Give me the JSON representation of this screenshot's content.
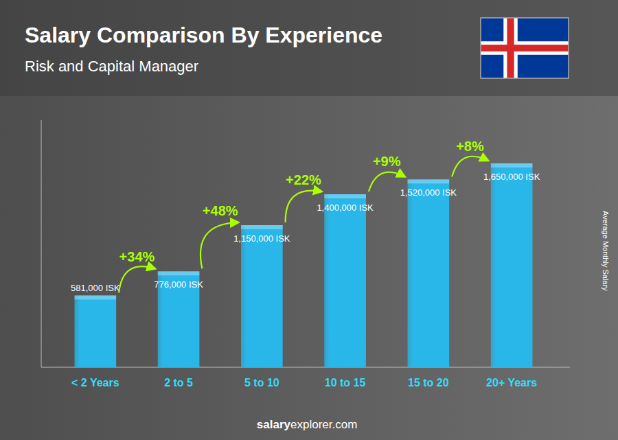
{
  "chart_data": {
    "type": "bar",
    "title": "Salary Comparison By Experience",
    "subtitle": "Risk and Capital Manager",
    "y_label": "Average Monthly Salary",
    "categories": [
      "< 2 Years",
      "2 to 5",
      "5 to 10",
      "10 to 15",
      "15 to 20",
      "20+ Years"
    ],
    "values": [
      581000,
      776000,
      1150000,
      1400000,
      1520000,
      1650000
    ],
    "value_labels": [
      "581,000 ISK",
      "776,000 ISK",
      "1,150,000 ISK",
      "1,400,000 ISK",
      "1,520,000 ISK",
      "1,650,000 ISK"
    ],
    "data_labels": true,
    "annotations": [
      "+34%",
      "+48%",
      "+22%",
      "+9%",
      "+8%"
    ],
    "footer": [
      "salary",
      "explorer.com"
    ],
    "color": "#29b6e8",
    "ylim": [
      0,
      2000000
    ],
    "grid": false,
    "tick_labels": "x"
  }
}
